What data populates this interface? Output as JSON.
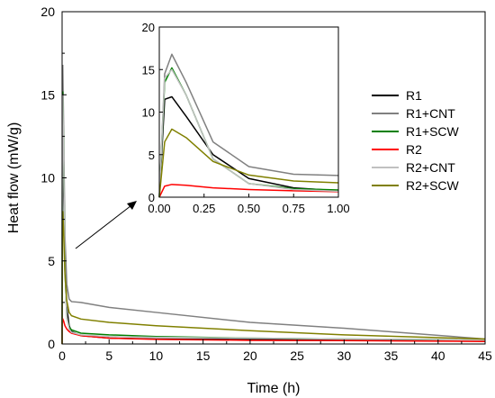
{
  "chart_data": {
    "type": "line",
    "xlabel": "Time (h)",
    "ylabel": "Heat flow (mW/g)",
    "xlim": [
      0,
      45
    ],
    "ylim": [
      0,
      20
    ],
    "x_ticks": [
      "0",
      "5",
      "10",
      "15",
      "20",
      "25",
      "30",
      "35",
      "40",
      "45"
    ],
    "y_ticks": [
      "0",
      "5",
      "10",
      "15",
      "20"
    ],
    "legend_position": "right",
    "grid": false,
    "series": [
      {
        "name": "R1",
        "color": "#000000",
        "x": [
          0,
          0.03,
          0.07,
          0.15,
          0.3,
          0.5,
          0.75,
          1.0,
          2,
          5,
          10,
          20,
          30,
          45
        ],
        "y": [
          0,
          11.5,
          11.8,
          9.5,
          5.0,
          2.2,
          1.1,
          0.75,
          0.5,
          0.35,
          0.3,
          0.27,
          0.25,
          0.25
        ]
      },
      {
        "name": "R1+CNT",
        "color": "#808080",
        "x": [
          0,
          0.03,
          0.07,
          0.15,
          0.3,
          0.5,
          0.75,
          1.0,
          2,
          5,
          10,
          20,
          30,
          45
        ],
        "y": [
          0,
          14.5,
          16.8,
          13.5,
          6.5,
          3.6,
          2.7,
          2.55,
          2.5,
          2.2,
          1.9,
          1.3,
          0.95,
          0.3
        ]
      },
      {
        "name": "R1+SCW",
        "color": "#008000",
        "x": [
          0,
          0.03,
          0.07,
          0.15,
          0.3,
          0.5,
          0.75,
          1.0,
          2,
          5,
          10,
          20,
          30,
          45
        ],
        "y": [
          0,
          13.5,
          15.2,
          12.0,
          4.5,
          1.6,
          1.0,
          0.85,
          0.65,
          0.55,
          0.45,
          0.35,
          0.3,
          0.25
        ]
      },
      {
        "name": "R2",
        "color": "#ff0000",
        "x": [
          0,
          0.03,
          0.07,
          0.15,
          0.3,
          0.5,
          0.75,
          1.0,
          2,
          5,
          10,
          20,
          30,
          45
        ],
        "y": [
          0,
          1.3,
          1.5,
          1.4,
          1.1,
          0.9,
          0.75,
          0.65,
          0.5,
          0.35,
          0.28,
          0.22,
          0.2,
          0.15
        ]
      },
      {
        "name": "R2+CNT",
        "color": "#c0c0c0",
        "x": [
          0,
          0.03,
          0.07,
          0.15,
          0.3,
          0.5,
          0.75,
          1.0,
          2,
          5,
          10,
          20,
          30,
          45
        ],
        "y": [
          0,
          14.0,
          15.0,
          12.0,
          4.5,
          1.6,
          0.9,
          0.7,
          0.55,
          0.45,
          0.4,
          0.35,
          0.3,
          0.25
        ]
      },
      {
        "name": "R2+SCW",
        "color": "#808000",
        "x": [
          0,
          0.03,
          0.07,
          0.15,
          0.3,
          0.5,
          0.75,
          1.0,
          2,
          5,
          10,
          20,
          30,
          45
        ],
        "y": [
          0,
          6.5,
          8.0,
          7.0,
          4.2,
          2.6,
          1.9,
          1.7,
          1.5,
          1.3,
          1.1,
          0.8,
          0.55,
          0.3
        ]
      }
    ],
    "inset": {
      "xlim": [
        0,
        1.0
      ],
      "ylim": [
        0,
        20
      ],
      "x_ticks": [
        "0.00",
        "0.25",
        "0.50",
        "0.75",
        "1.00"
      ],
      "y_ticks": [
        "0",
        "5",
        "10",
        "15",
        "20"
      ]
    }
  }
}
